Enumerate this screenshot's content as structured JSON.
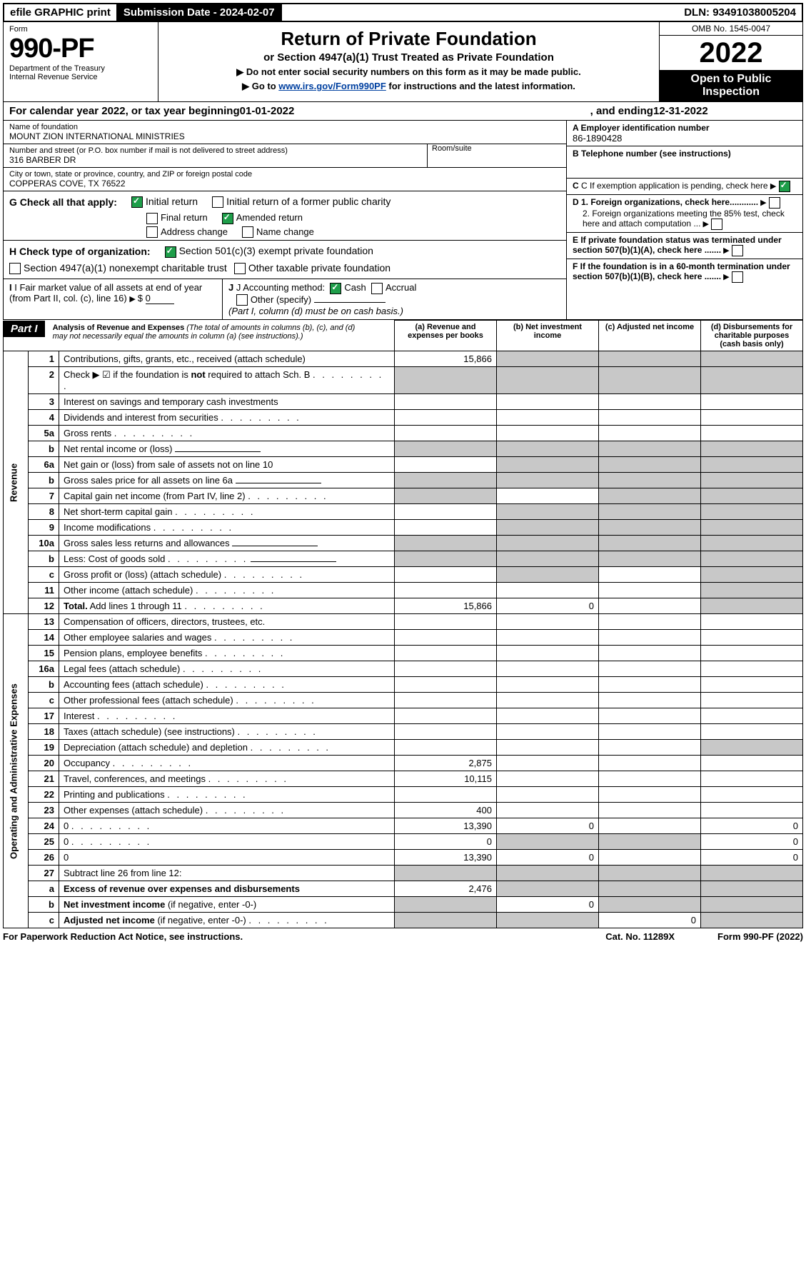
{
  "topbar": {
    "efile": "efile GRAPHIC print",
    "subdate_label": "Submission Date - 2024-02-07",
    "dln": "DLN: 93491038005204"
  },
  "header": {
    "form": "Form",
    "form_no": "990-PF",
    "dept": "Department of the Treasury",
    "irs": "Internal Revenue Service",
    "title": "Return of Private Foundation",
    "subtitle": "or Section 4947(a)(1) Trust Treated as Private Foundation",
    "note1": "▶ Do not enter social security numbers on this form as it may be made public.",
    "note2_pre": "▶ Go to ",
    "note2_link": "www.irs.gov/Form990PF",
    "note2_post": " for instructions and the latest information.",
    "omb": "OMB No. 1545-0047",
    "year": "2022",
    "open": "Open to Public Inspection"
  },
  "calyear": {
    "prefix": "For calendar year 2022, or tax year beginning ",
    "begin": "01-01-2022",
    "mid": " , and ending ",
    "end": "12-31-2022"
  },
  "entity": {
    "name_label": "Name of foundation",
    "name": "MOUNT ZION INTERNATIONAL MINISTRIES",
    "addr_label": "Number and street (or P.O. box number if mail is not delivered to street address)",
    "addr": "316 BARBER DR",
    "room_label": "Room/suite",
    "city_label": "City or town, state or province, country, and ZIP or foreign postal code",
    "city": "COPPERAS COVE, TX  76522",
    "ein_label": "A Employer identification number",
    "ein": "86-1890428",
    "phone_label": "B Telephone number (see instructions)",
    "c_label": "C If exemption application is pending, check here",
    "d1": "D 1. Foreign organizations, check here............",
    "d2": "2. Foreign organizations meeting the 85% test, check here and attach computation ...",
    "e": "E  If private foundation status was terminated under section 507(b)(1)(A), check here .......",
    "f": "F  If the foundation is in a 60-month termination under section 507(b)(1)(B), check here .......",
    "g": "G Check all that apply:",
    "g_initial": "Initial return",
    "g_initial_fpc": "Initial return of a former public charity",
    "g_final": "Final return",
    "g_amended": "Amended return",
    "g_addr": "Address change",
    "g_name": "Name change",
    "h": "H Check type of organization:",
    "h_501c3": "Section 501(c)(3) exempt private foundation",
    "h_4947": "Section 4947(a)(1) nonexempt charitable trust",
    "h_other": "Other taxable private foundation",
    "i": "I Fair market value of all assets at end of year (from Part II, col. (c), line 16)",
    "i_val": "0",
    "j": "J Accounting method:",
    "j_cash": "Cash",
    "j_accrual": "Accrual",
    "j_other": "Other (specify)",
    "j_note": "(Part I, column (d) must be on cash basis.)"
  },
  "part1": {
    "label": "Part I",
    "title": "Analysis of Revenue and Expenses",
    "title_note": " (The total of amounts in columns (b), (c), and (d) may not necessarily equal the amounts in column (a) (see instructions).)",
    "cols": {
      "a": "(a)  Revenue and expenses per books",
      "b": "(b)  Net investment income",
      "c": "(c)  Adjusted net income",
      "d": "(d)  Disbursements for charitable purposes (cash basis only)"
    }
  },
  "sections": {
    "revenue": "Revenue",
    "expenses": "Operating and Administrative Expenses"
  },
  "lines": [
    {
      "n": "1",
      "d": "Contributions, gifts, grants, etc., received (attach schedule)",
      "a": "15,866",
      "grey_bcd": true
    },
    {
      "n": "2",
      "d": "Check ▶ ☑ if the foundation is <b>not</b> required to attach Sch. B",
      "dots": true,
      "grey_all": true
    },
    {
      "n": "3",
      "d": "Interest on savings and temporary cash investments"
    },
    {
      "n": "4",
      "d": "Dividends and interest from securities",
      "dots": true
    },
    {
      "n": "5a",
      "d": "Gross rents",
      "dots": true
    },
    {
      "n": "b",
      "d": "Net rental income or (loss)",
      "inline_blank": true,
      "grey_all": true
    },
    {
      "n": "6a",
      "d": "Net gain or (loss) from sale of assets not on line 10",
      "grey_bcd": true
    },
    {
      "n": "b",
      "d": "Gross sales price for all assets on line 6a",
      "inline_blank": true,
      "grey_all": true
    },
    {
      "n": "7",
      "d": "Capital gain net income (from Part IV, line 2)",
      "dots": true,
      "grey_acd": true
    },
    {
      "n": "8",
      "d": "Net short-term capital gain",
      "dots": true,
      "grey_abd": true
    },
    {
      "n": "9",
      "d": "Income modifications",
      "dots": true,
      "grey_abd": true
    },
    {
      "n": "10a",
      "d": "Gross sales less returns and allowances",
      "inline_blank": true,
      "grey_all": true
    },
    {
      "n": "b",
      "d": "Less: Cost of goods sold",
      "dots": true,
      "inline_blank": true,
      "grey_all": true
    },
    {
      "n": "c",
      "d": "Gross profit or (loss) (attach schedule)",
      "dots": true,
      "grey_bd": true
    },
    {
      "n": "11",
      "d": "Other income (attach schedule)",
      "dots": true,
      "grey_d": true
    },
    {
      "n": "12",
      "d": "<b>Total.</b> Add lines 1 through 11",
      "dots": true,
      "a": "15,866",
      "b": "0",
      "grey_d": true
    }
  ],
  "exp_lines": [
    {
      "n": "13",
      "d": "Compensation of officers, directors, trustees, etc."
    },
    {
      "n": "14",
      "d": "Other employee salaries and wages",
      "dots": true
    },
    {
      "n": "15",
      "d": "Pension plans, employee benefits",
      "dots": true
    },
    {
      "n": "16a",
      "d": "Legal fees (attach schedule)",
      "dots": true
    },
    {
      "n": "b",
      "d": "Accounting fees (attach schedule)",
      "dots": true
    },
    {
      "n": "c",
      "d": "Other professional fees (attach schedule)",
      "dots": true
    },
    {
      "n": "17",
      "d": "Interest",
      "dots": true
    },
    {
      "n": "18",
      "d": "Taxes (attach schedule) (see instructions)",
      "dots": true
    },
    {
      "n": "19",
      "d": "Depreciation (attach schedule) and depletion",
      "dots": true,
      "grey_d": true
    },
    {
      "n": "20",
      "d": "Occupancy",
      "dots": true,
      "a": "2,875"
    },
    {
      "n": "21",
      "d": "Travel, conferences, and meetings",
      "dots": true,
      "a": "10,115"
    },
    {
      "n": "22",
      "d": "Printing and publications",
      "dots": true
    },
    {
      "n": "23",
      "d": "Other expenses (attach schedule)",
      "dots": true,
      "a": "400"
    },
    {
      "n": "24",
      "d": "0",
      "dots": true,
      "a": "13,390",
      "b": "0"
    },
    {
      "n": "25",
      "d": "0",
      "dots": true,
      "a": "0",
      "grey_bc": true
    },
    {
      "n": "26",
      "d": "0",
      "a": "13,390",
      "b": "0"
    }
  ],
  "net_lines": [
    {
      "n": "27",
      "d": "Subtract line 26 from line 12:",
      "grey_all": true
    },
    {
      "n": "a",
      "d": "<b>Excess of revenue over expenses and disbursements</b>",
      "a": "2,476",
      "grey_bcd": true
    },
    {
      "n": "b",
      "d": "<b>Net investment income</b> (if negative, enter -0-)",
      "grey_a": true,
      "b": "0",
      "grey_cd": true
    },
    {
      "n": "c",
      "d": "<b>Adjusted net income</b> (if negative, enter -0-)",
      "dots": true,
      "grey_ab": true,
      "c": "0",
      "grey_d": true
    }
  ],
  "footer": {
    "pra": "For Paperwork Reduction Act Notice, see instructions.",
    "cat": "Cat. No. 11289X",
    "form": "Form 990-PF (2022)"
  }
}
